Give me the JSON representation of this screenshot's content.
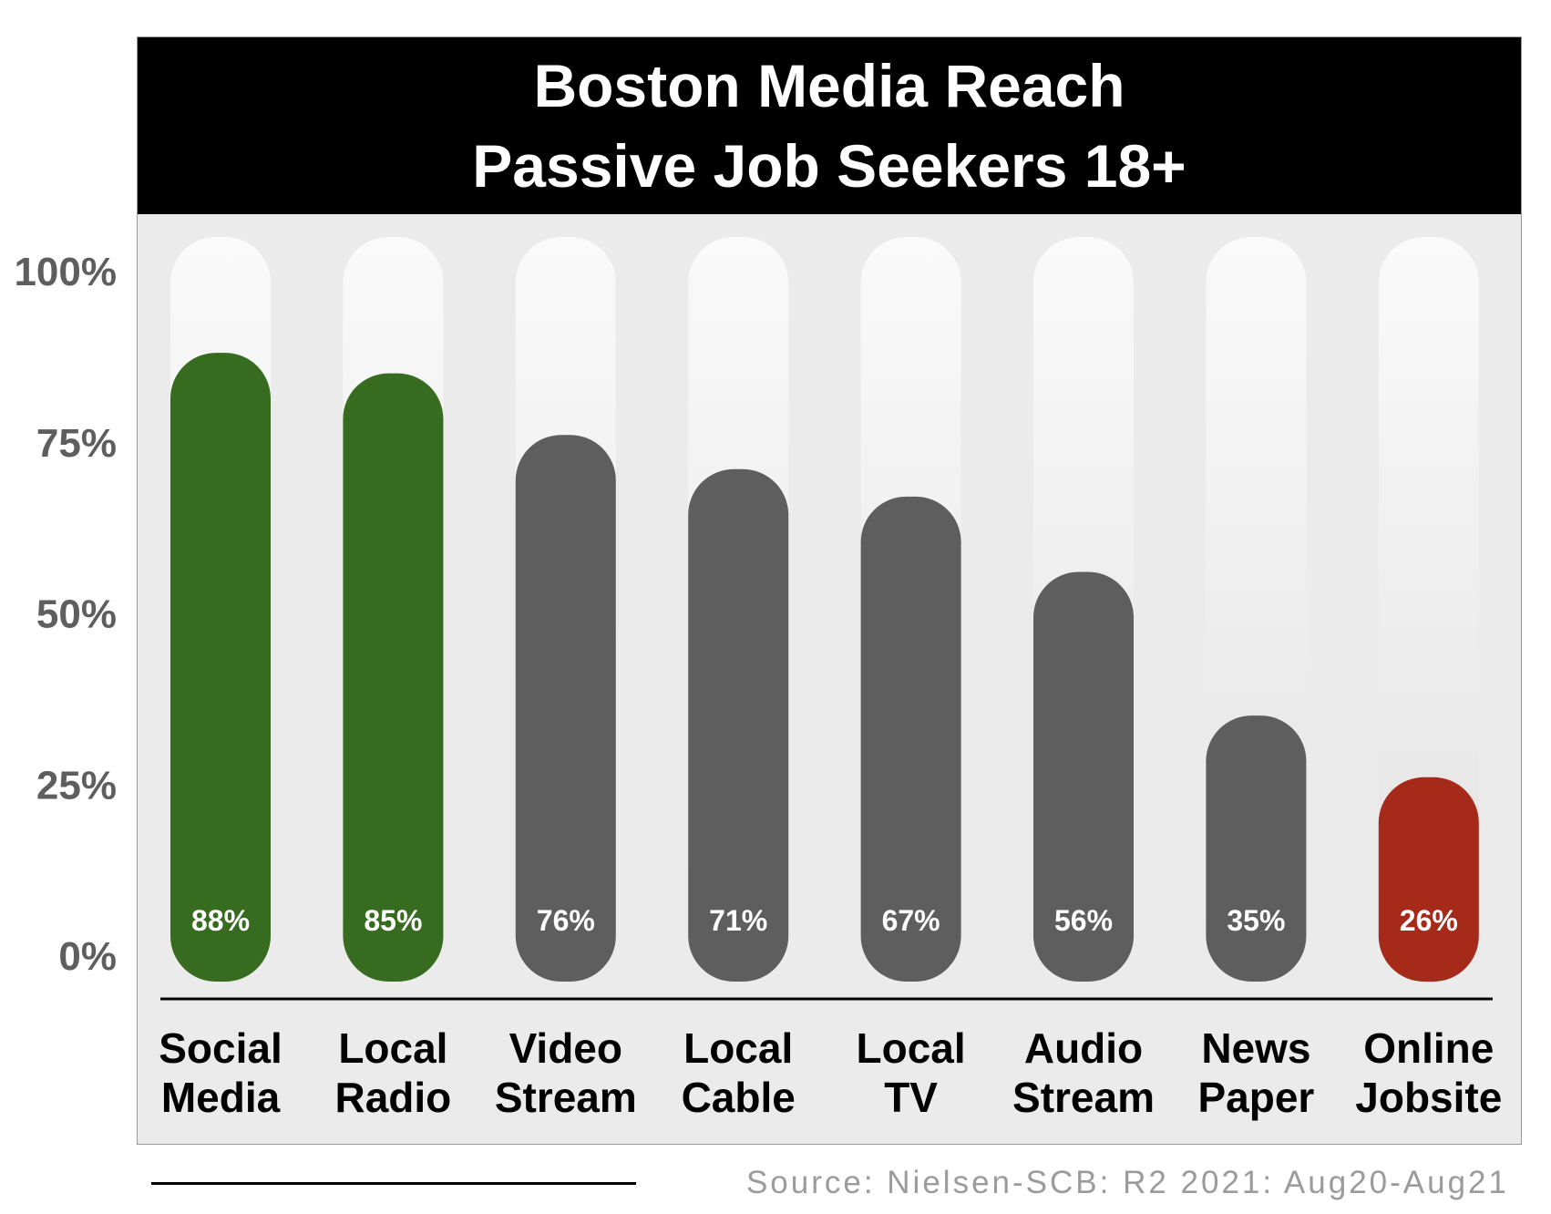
{
  "colors": {
    "highlight_top": "#376b1f",
    "neutral": "#5e5e5e",
    "highlight_low": "#a52a1a",
    "track_top": "#fafafa",
    "track_bottom": "#e2e2e2"
  },
  "source": "Source: Nielsen-SCB: R2 2021: Aug20-Aug21",
  "chart_data": {
    "type": "bar",
    "title_lines": [
      "Boston Media Reach",
      "Passive Job Seekers 18+"
    ],
    "categories": [
      [
        "Social",
        "Media"
      ],
      [
        "Local",
        "Radio"
      ],
      [
        "Video",
        "Stream"
      ],
      [
        "Local",
        "Cable"
      ],
      [
        "Local",
        "TV"
      ],
      [
        "Audio",
        "Stream"
      ],
      [
        "News",
        "Paper"
      ],
      [
        "Online",
        "Jobsite"
      ]
    ],
    "values": [
      88,
      85,
      76,
      71,
      67,
      56,
      35,
      26
    ],
    "data_labels": [
      "88%",
      "85%",
      "76%",
      "71%",
      "67%",
      "56%",
      "35%",
      "26%"
    ],
    "bar_colors": [
      "#376b1f",
      "#376b1f",
      "#5e5e5e",
      "#5e5e5e",
      "#5e5e5e",
      "#5e5e5e",
      "#5e5e5e",
      "#a52a1a"
    ],
    "y_ticks": [
      {
        "value": 100,
        "label": "100%"
      },
      {
        "value": 75,
        "label": "75%"
      },
      {
        "value": 50,
        "label": "50%"
      },
      {
        "value": 25,
        "label": "25%"
      },
      {
        "value": 0,
        "label": "0%"
      }
    ],
    "ylim": [
      0,
      100
    ],
    "legend": "none",
    "grid": false
  }
}
